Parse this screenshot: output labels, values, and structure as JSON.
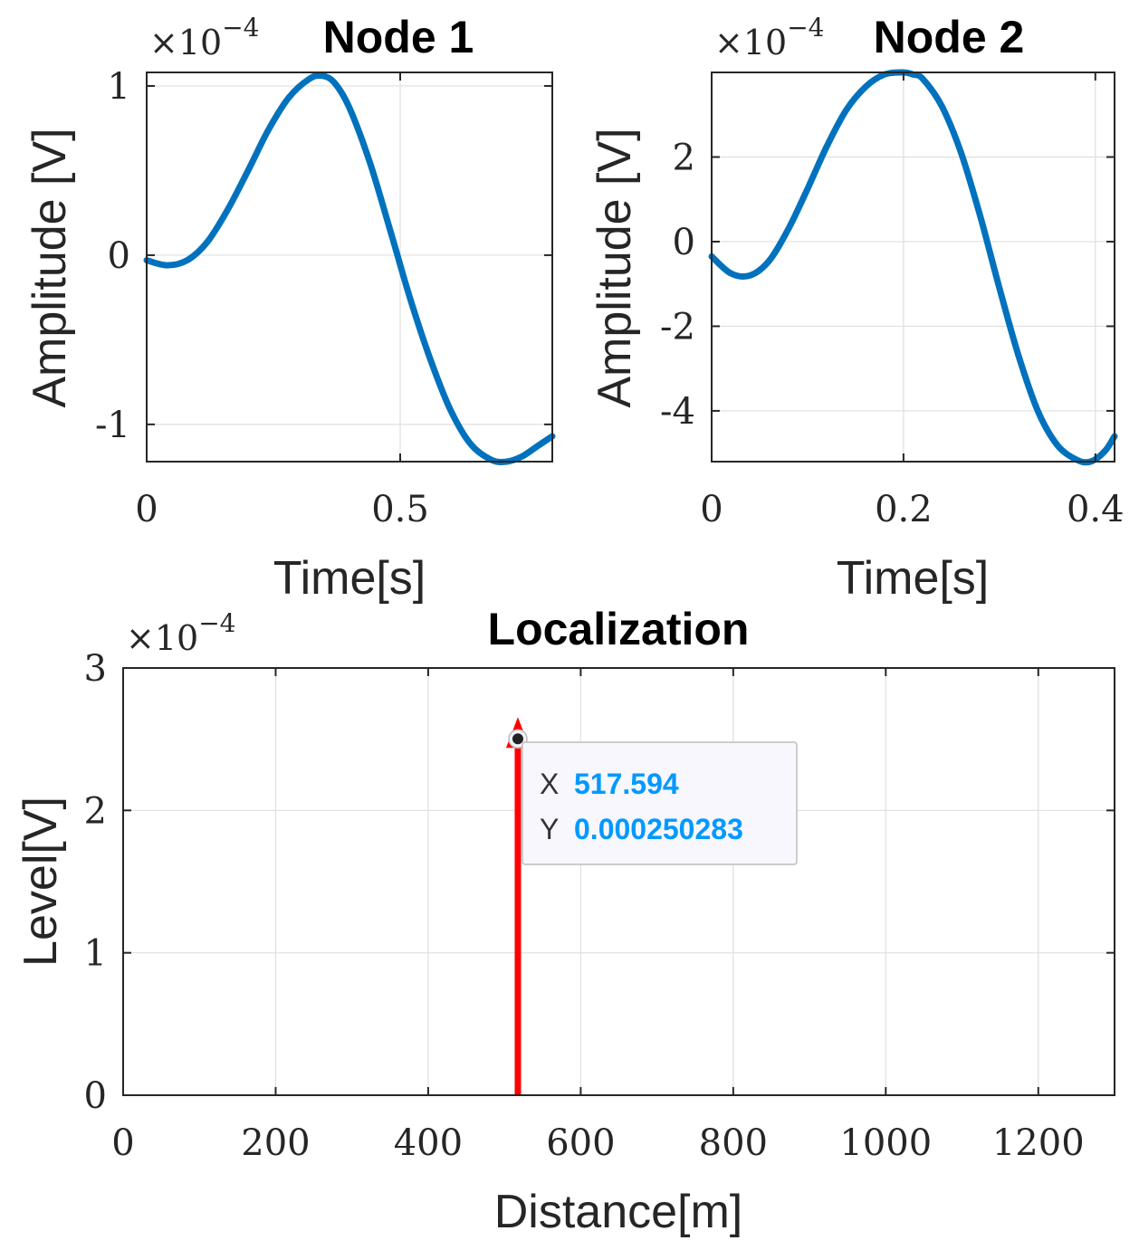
{
  "chart_data": [
    {
      "type": "line",
      "title": "Node 1",
      "xlabel": "Time[s]",
      "ylabel": "Amplitude [V]",
      "exponent_label": "×10",
      "exponent_power": "−4",
      "xlim": [
        0,
        0.8
      ],
      "ylim": [
        -1.22,
        1.08
      ],
      "xticks": [
        0,
        0.5
      ],
      "xtick_labels": [
        "0",
        "0.5"
      ],
      "yticks": [
        -1,
        0,
        1
      ],
      "ytick_labels": [
        "-1",
        "0",
        "1"
      ],
      "series": [
        {
          "name": "Node 1 signal",
          "color": "#0072BD",
          "x": [
            0,
            0.04,
            0.08,
            0.12,
            0.16,
            0.2,
            0.24,
            0.28,
            0.32,
            0.345,
            0.37,
            0.4,
            0.44,
            0.48,
            0.52,
            0.56,
            0.6,
            0.64,
            0.68,
            0.71,
            0.74,
            0.77,
            0.8
          ],
          "y": [
            -0.03,
            -0.06,
            -0.03,
            0.08,
            0.27,
            0.5,
            0.74,
            0.93,
            1.04,
            1.06,
            1.02,
            0.87,
            0.55,
            0.15,
            -0.26,
            -0.62,
            -0.92,
            -1.12,
            -1.21,
            -1.22,
            -1.19,
            -1.13,
            -1.07
          ]
        }
      ]
    },
    {
      "type": "line",
      "title": "Node 2",
      "xlabel": "Time[s]",
      "ylabel": "Amplitude [V]",
      "exponent_label": "×10",
      "exponent_power": "−4",
      "xlim": [
        0,
        0.42
      ],
      "ylim": [
        -5.2,
        4
      ],
      "xticks": [
        0,
        0.2,
        0.4
      ],
      "xtick_labels": [
        "0",
        "0.2",
        "0.4"
      ],
      "yticks": [
        -4,
        -2,
        0,
        2
      ],
      "ytick_labels": [
        "-4",
        "-2",
        "0",
        "2"
      ],
      "series": [
        {
          "name": "Node 2 signal",
          "color": "#0072BD",
          "x": [
            0,
            0.02,
            0.04,
            0.06,
            0.08,
            0.1,
            0.12,
            0.14,
            0.16,
            0.18,
            0.2,
            0.21,
            0.22,
            0.24,
            0.26,
            0.28,
            0.3,
            0.32,
            0.34,
            0.36,
            0.38,
            0.395,
            0.41,
            0.42
          ],
          "y": [
            -0.35,
            -0.75,
            -0.8,
            -0.45,
            0.3,
            1.25,
            2.25,
            3.1,
            3.65,
            3.95,
            4.0,
            3.95,
            3.85,
            3.2,
            2.1,
            0.6,
            -1.1,
            -2.7,
            -4.0,
            -4.8,
            -5.15,
            -5.2,
            -4.95,
            -4.6
          ]
        }
      ]
    },
    {
      "type": "stem",
      "title": "Localization",
      "xlabel": "Distance[m]",
      "ylabel": "Level[V]",
      "exponent_label": "×10",
      "exponent_power": "−4",
      "xlim": [
        0,
        1300
      ],
      "ylim": [
        0,
        3
      ],
      "xticks": [
        0,
        200,
        400,
        600,
        800,
        1000,
        1200
      ],
      "xtick_labels": [
        "0",
        "200",
        "400",
        "600",
        "800",
        "1000",
        "1200"
      ],
      "yticks": [
        0,
        1,
        2,
        3
      ],
      "ytick_labels": [
        "0",
        "1",
        "2",
        "3"
      ],
      "series": [
        {
          "name": "Localization stem",
          "color": "#FF0000",
          "x": [
            517.594
          ],
          "y": [
            2.50283
          ]
        }
      ],
      "datatip": {
        "x_key": "X",
        "x_value": "517.594",
        "y_key": "Y",
        "y_value": "0.000250283",
        "value_color": "#0099FF"
      }
    }
  ]
}
